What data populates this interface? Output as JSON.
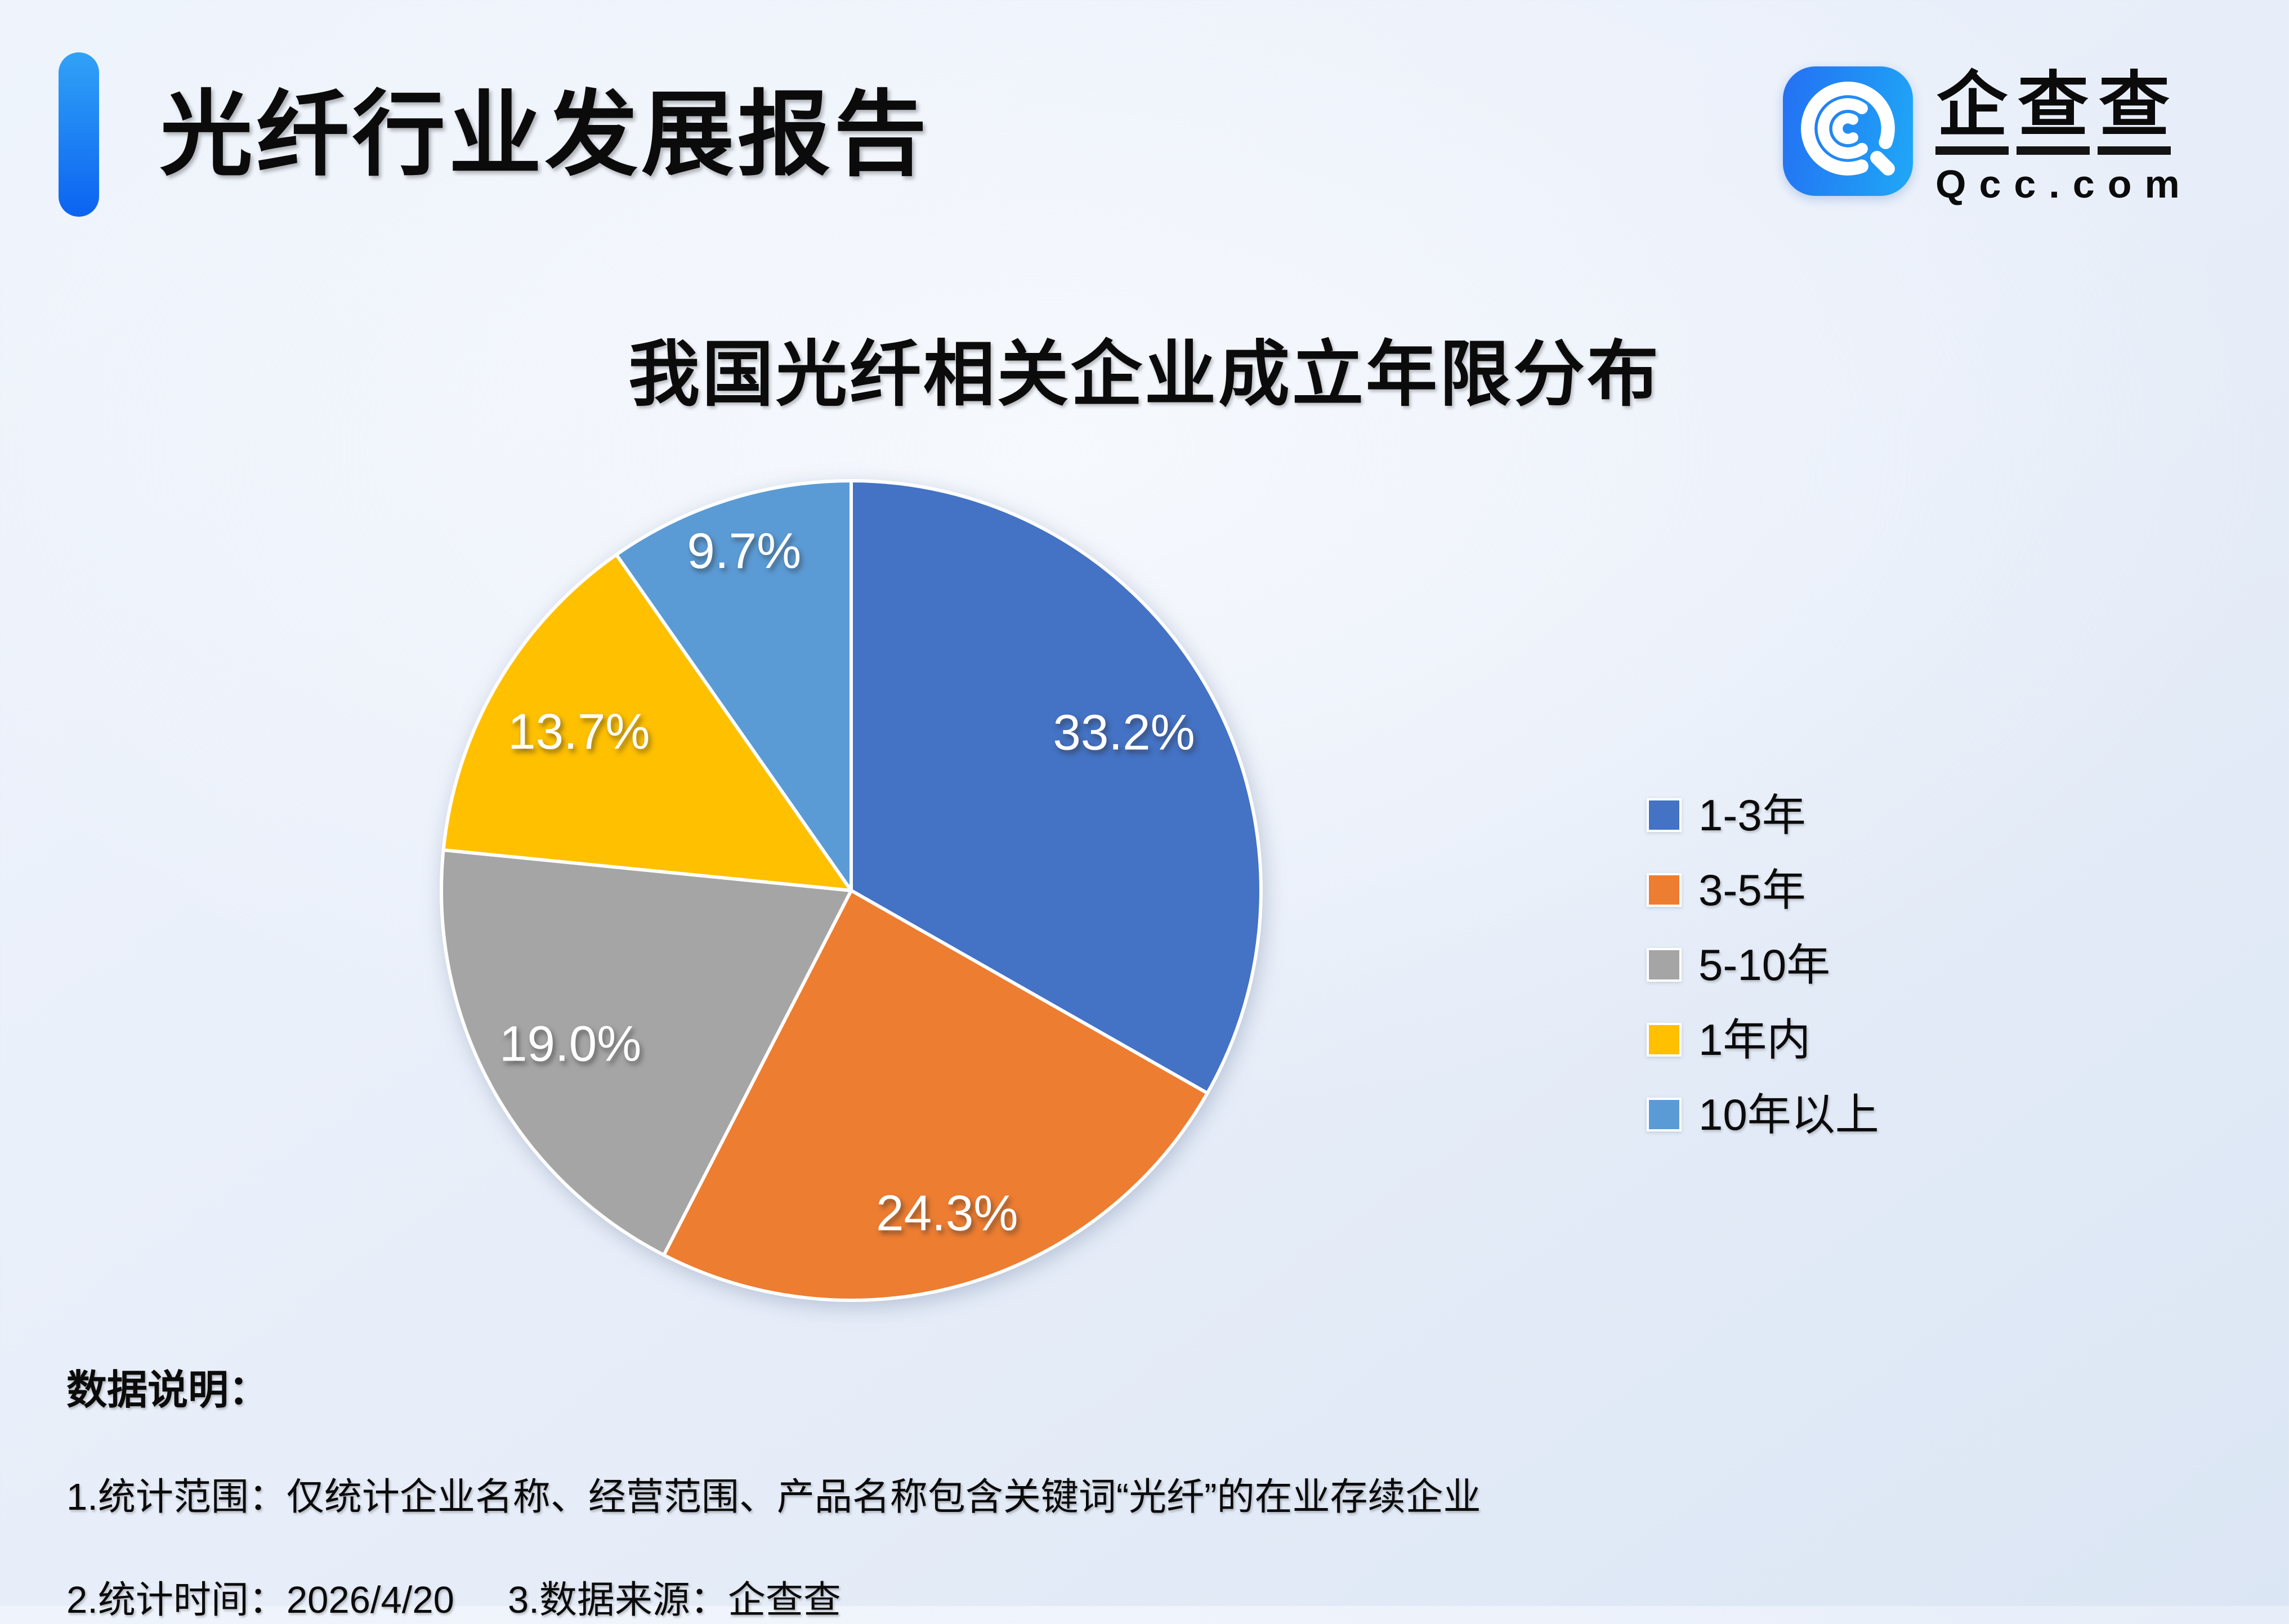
{
  "header": {
    "report_title": "光纤行业发展报告",
    "logo": {
      "brand_chars": [
        "企",
        "查",
        "查"
      ],
      "domain": "Qcc.com"
    }
  },
  "chart_data": {
    "type": "pie",
    "title": "我国光纤相关企业成立年限分布",
    "categories": [
      "1-3年",
      "3-5年",
      "5-10年",
      "1年内",
      "10年以上"
    ],
    "values": [
      33.2,
      24.3,
      19.0,
      13.7,
      9.7
    ],
    "value_labels": [
      "33.2%",
      "24.3%",
      "19.0%",
      "13.7%",
      "9.7%"
    ],
    "colors": [
      "#4472C4",
      "#ED7D31",
      "#A5A5A5",
      "#FFC000",
      "#5B9BD5"
    ],
    "unit": "%",
    "start_angle": "top",
    "direction": "clockwise",
    "legend_position": "right",
    "slice_border_color": "#FFFFFF"
  },
  "footnotes": {
    "heading": "数据说明：",
    "scope": "1.统计范围：仅统计企业名称、经营范围、产品名称包含关键词“光纤”的在业存续企业",
    "time": "2.统计时间：2026/4/20",
    "source": "3.数据来源：企查查"
  },
  "theme": {
    "accent_bar_gradient": [
      "#31A2F7",
      "#0B63F1"
    ],
    "logo_gradient": [
      "#2470F3",
      "#1FA8F6"
    ],
    "text_color": "#0B0B0B",
    "background": "#E9EFF9"
  }
}
